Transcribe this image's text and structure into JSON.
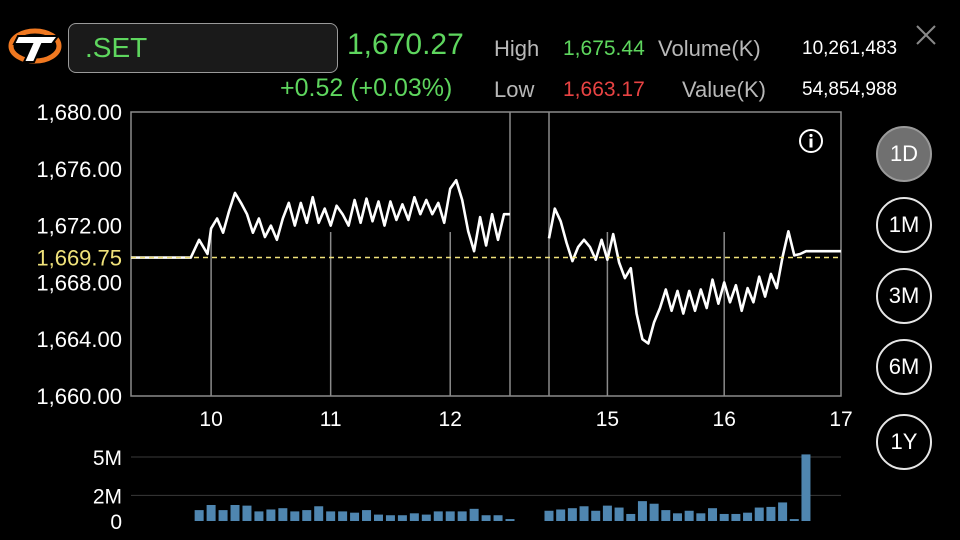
{
  "header": {
    "symbol": ".SET",
    "last": "1,670.27",
    "change": "+0.52 (+0.03%)",
    "high_label": "High",
    "high": "1,675.44",
    "low_label": "Low",
    "low": "1,663.17",
    "volume_label": "Volume(K)",
    "volume": "10,261,483",
    "value_label": "Value(K)",
    "value": "54,854,988"
  },
  "ranges": [
    {
      "label": "1D",
      "active": true
    },
    {
      "label": "1M",
      "active": false
    },
    {
      "label": "3M",
      "active": false
    },
    {
      "label": "6M",
      "active": false
    },
    {
      "label": "1Y",
      "active": false
    }
  ],
  "colors": {
    "up": "#5ed65e",
    "down": "#e84343",
    "line": "#ffffff",
    "prev_close": "#f0e27a",
    "volume_bar": "#4f86b0"
  },
  "chart_data": [
    {
      "type": "line",
      "title": "",
      "xlabel": "",
      "ylabel": "",
      "ylim": [
        1660,
        1680
      ],
      "xlim": [
        9.33,
        17.0
      ],
      "x_ticks": [
        10,
        11,
        12,
        15,
        16,
        17
      ],
      "x_tick_labels": [
        "10",
        "11",
        "12",
        "15",
        "16",
        "17"
      ],
      "y_ticks": [
        1660,
        1664,
        1668,
        1672,
        1676,
        1680
      ],
      "y_tick_labels": [
        "1,660.00",
        "1,664.00",
        "1,668.00",
        "1,672.00",
        "1,676.00",
        "1,680.00"
      ],
      "prev_close": 1669.75,
      "prev_close_label": "1,669.75",
      "grid": true,
      "session_gap": [
        12.5,
        14.5
      ],
      "series": [
        {
          "segments": [
            {
              "x": [
                9.33,
                9.5,
                9.67,
                9.83,
                9.9,
                9.97,
                10.0,
                10.05,
                10.1,
                10.15,
                10.2,
                10.25,
                10.3,
                10.35,
                10.4,
                10.45,
                10.5,
                10.55,
                10.6,
                10.65,
                10.7,
                10.75,
                10.8,
                10.85,
                10.9,
                10.95,
                11.0,
                11.05,
                11.1,
                11.15,
                11.2,
                11.25,
                11.3,
                11.35,
                11.4,
                11.45,
                11.5,
                11.55,
                11.6,
                11.65,
                11.7,
                11.75,
                11.8,
                11.85,
                11.9,
                11.95,
                12.0,
                12.05,
                12.1,
                12.15,
                12.2,
                12.25,
                12.3,
                12.35,
                12.4,
                12.45,
                12.5
              ],
              "y": [
                1669.75,
                1669.75,
                1669.75,
                1669.75,
                1671.0,
                1670.0,
                1671.8,
                1672.5,
                1671.5,
                1673.0,
                1674.3,
                1673.6,
                1672.8,
                1671.5,
                1672.5,
                1671.2,
                1672.0,
                1671.0,
                1672.5,
                1673.6,
                1672.0,
                1673.6,
                1672.2,
                1674.0,
                1672.2,
                1673.2,
                1672.0,
                1673.4,
                1672.8,
                1672.0,
                1673.8,
                1672.2,
                1673.9,
                1672.3,
                1673.7,
                1672.0,
                1673.7,
                1672.4,
                1673.5,
                1672.4,
                1674.0,
                1672.8,
                1673.8,
                1672.8,
                1673.6,
                1672.2,
                1674.6,
                1675.2,
                1673.8,
                1671.6,
                1670.2,
                1672.6,
                1670.6,
                1672.8,
                1671.0,
                1672.8,
                1672.8
              ]
            },
            {
              "x": [
                14.5,
                14.55,
                14.6,
                14.65,
                14.7,
                14.75,
                14.8,
                14.85,
                14.9,
                14.95,
                15.0,
                15.05,
                15.1,
                15.15,
                15.2,
                15.25,
                15.3,
                15.35,
                15.4,
                15.45,
                15.5,
                15.55,
                15.6,
                15.65,
                15.7,
                15.75,
                15.8,
                15.85,
                15.9,
                15.95,
                16.0,
                16.05,
                16.1,
                16.15,
                16.2,
                16.25,
                16.3,
                16.35,
                16.4,
                16.45,
                16.5,
                16.55,
                16.6,
                16.65,
                16.7,
                16.8,
                17.0
              ],
              "y": [
                1671.1,
                1673.2,
                1672.3,
                1670.8,
                1669.5,
                1670.5,
                1671.0,
                1670.5,
                1669.6,
                1671.0,
                1669.6,
                1671.4,
                1669.4,
                1668.3,
                1669.0,
                1665.8,
                1664.0,
                1663.7,
                1665.2,
                1666.2,
                1667.5,
                1666.0,
                1667.4,
                1665.8,
                1667.4,
                1666.0,
                1667.5,
                1666.2,
                1668.2,
                1666.5,
                1668.0,
                1666.6,
                1667.8,
                1666.0,
                1667.6,
                1666.6,
                1668.4,
                1667.0,
                1668.6,
                1667.6,
                1669.8,
                1671.6,
                1669.9,
                1670.0,
                1670.2,
                1670.2,
                1670.2
              ]
            }
          ]
        }
      ]
    },
    {
      "type": "bar",
      "title": "",
      "xlabel": "",
      "ylabel": "",
      "ylim": [
        0,
        5
      ],
      "y_ticks": [
        0,
        2,
        5
      ],
      "y_tick_labels": [
        "0",
        "2M",
        "5M"
      ],
      "x": [
        9.9,
        10.0,
        10.1,
        10.2,
        10.3,
        10.4,
        10.5,
        10.6,
        10.7,
        10.8,
        10.9,
        11.0,
        11.1,
        11.2,
        11.3,
        11.4,
        11.5,
        11.6,
        11.7,
        11.8,
        11.9,
        12.0,
        12.1,
        12.2,
        12.3,
        12.4,
        12.5,
        14.5,
        14.6,
        14.7,
        14.8,
        14.9,
        15.0,
        15.1,
        15.2,
        15.3,
        15.4,
        15.5,
        15.6,
        15.7,
        15.8,
        15.9,
        16.0,
        16.1,
        16.2,
        16.3,
        16.4,
        16.5,
        16.6,
        16.7
      ],
      "values": [
        0.85,
        1.25,
        0.85,
        1.25,
        1.2,
        0.75,
        0.9,
        1.0,
        0.75,
        0.85,
        1.15,
        0.75,
        0.75,
        0.65,
        0.85,
        0.5,
        0.45,
        0.45,
        0.6,
        0.5,
        0.75,
        0.75,
        0.75,
        0.95,
        0.45,
        0.45,
        0.15,
        0.8,
        0.9,
        1.0,
        1.15,
        0.8,
        1.2,
        1.05,
        0.55,
        1.55,
        1.35,
        0.85,
        0.6,
        0.8,
        0.6,
        1.0,
        0.55,
        0.55,
        0.65,
        1.05,
        1.1,
        1.45,
        0.15,
        5.2
      ]
    }
  ]
}
